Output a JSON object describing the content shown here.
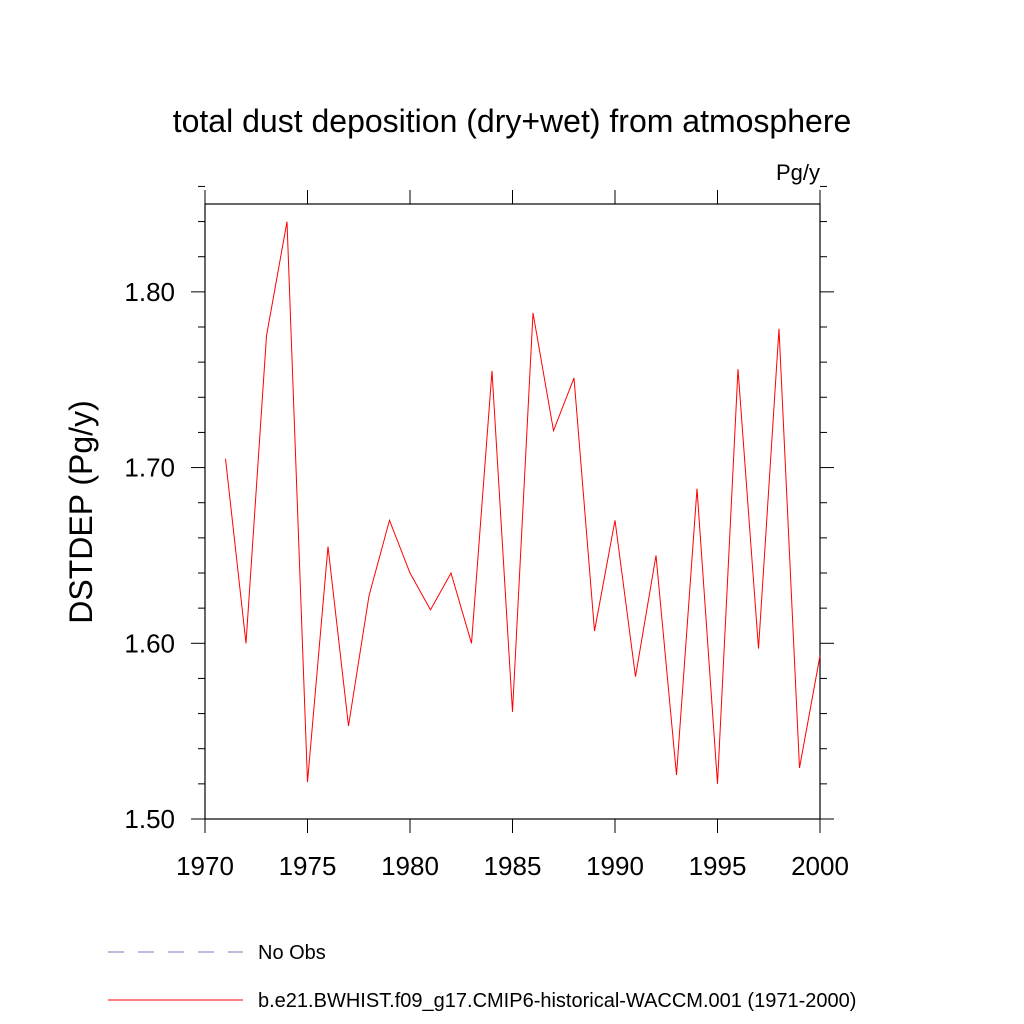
{
  "chart_data": {
    "type": "line",
    "title": "total dust deposition (dry+wet) from atmosphere",
    "units": "Pg/y",
    "ylabel": "DSTDEP  (Pg/y)",
    "xlabel": "",
    "xlim": [
      1970,
      2000
    ],
    "ylim": [
      1.5,
      1.85
    ],
    "x_ticks": [
      1970,
      1975,
      1980,
      1985,
      1990,
      1995,
      2000
    ],
    "x_tick_labels": [
      "1970",
      "1975",
      "1980",
      "1985",
      "1990",
      "1995",
      "2000"
    ],
    "y_ticks": [
      1.5,
      1.6,
      1.7,
      1.8
    ],
    "y_tick_labels": [
      "1.50",
      "1.60",
      "1.70",
      "1.80"
    ],
    "grid": false,
    "legend_position": "bottom",
    "series": [
      {
        "name": "b.e21.BWHIST.f09_g17.CMIP6-historical-WACCM.001 (1971-2000)",
        "color": "#ff0000",
        "style": "solid",
        "x": [
          1971,
          1972,
          1973,
          1974,
          1975,
          1976,
          1977,
          1978,
          1979,
          1980,
          1981,
          1982,
          1983,
          1984,
          1985,
          1986,
          1987,
          1988,
          1989,
          1990,
          1991,
          1992,
          1993,
          1994,
          1995,
          1996,
          1997,
          1998,
          1999,
          2000
        ],
        "values": [
          1.705,
          1.6,
          1.775,
          1.84,
          1.521,
          1.655,
          1.553,
          1.627,
          1.67,
          1.64,
          1.619,
          1.64,
          1.6,
          1.755,
          1.561,
          1.788,
          1.721,
          1.751,
          1.607,
          1.67,
          1.581,
          1.65,
          1.525,
          1.688,
          1.52,
          1.756,
          1.597,
          1.779,
          1.529,
          1.593
        ]
      }
    ],
    "legend": [
      {
        "label": "No Obs",
        "color": "#7777bb",
        "style": "dashed"
      },
      {
        "label": "b.e21.BWHIST.f09_g17.CMIP6-historical-WACCM.001 (1971-2000)",
        "color": "#ff0000",
        "style": "solid"
      }
    ]
  }
}
